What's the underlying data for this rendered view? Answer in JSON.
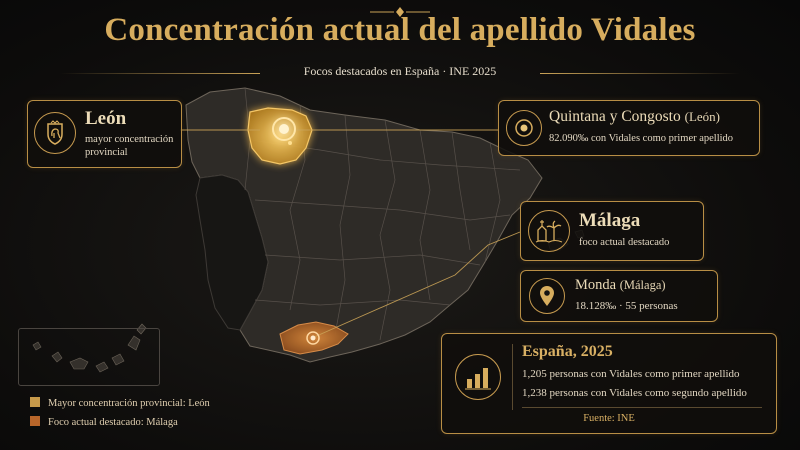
{
  "title": "Concentración actual del apellido Vidales",
  "subtitle": "Focos destacados en España · INE 2025",
  "colors": {
    "accent": "#d7ad5e",
    "leon": "#d39a2b",
    "malaga": "#b8662a",
    "background": "#0d0c0b"
  },
  "leon_card": {
    "name": "León",
    "desc_line1": "mayor concentración",
    "desc_line2": "provincial",
    "icon": "lion-crest-icon"
  },
  "quintana_card": {
    "name": "Quintana y Congosto",
    "region": "(León)",
    "desc": "82.090‰ con Vidales como primer apellido",
    "icon": "target-icon"
  },
  "malaga_card": {
    "name": "Málaga",
    "desc": "foco actual destacado",
    "icon": "palm-landmark-icon"
  },
  "monda_card": {
    "name": "Monda",
    "region": "(Málaga)",
    "desc": "18.128‰ · 55 personas",
    "icon": "location-pin-icon"
  },
  "espana_card": {
    "heading": "España, 2025",
    "line1": "1,205 personas con Vidales como primer apellido",
    "line2": "1,238 personas con Vidales como segundo apellido",
    "source": "Fuente: INE",
    "icon": "bar-chart-icon"
  },
  "legend": [
    {
      "label": "Mayor concentración provincial: León",
      "color": "#c79a4a"
    },
    {
      "label": "Foco actual destacado: Málaga",
      "color": "#b8662a"
    }
  ]
}
